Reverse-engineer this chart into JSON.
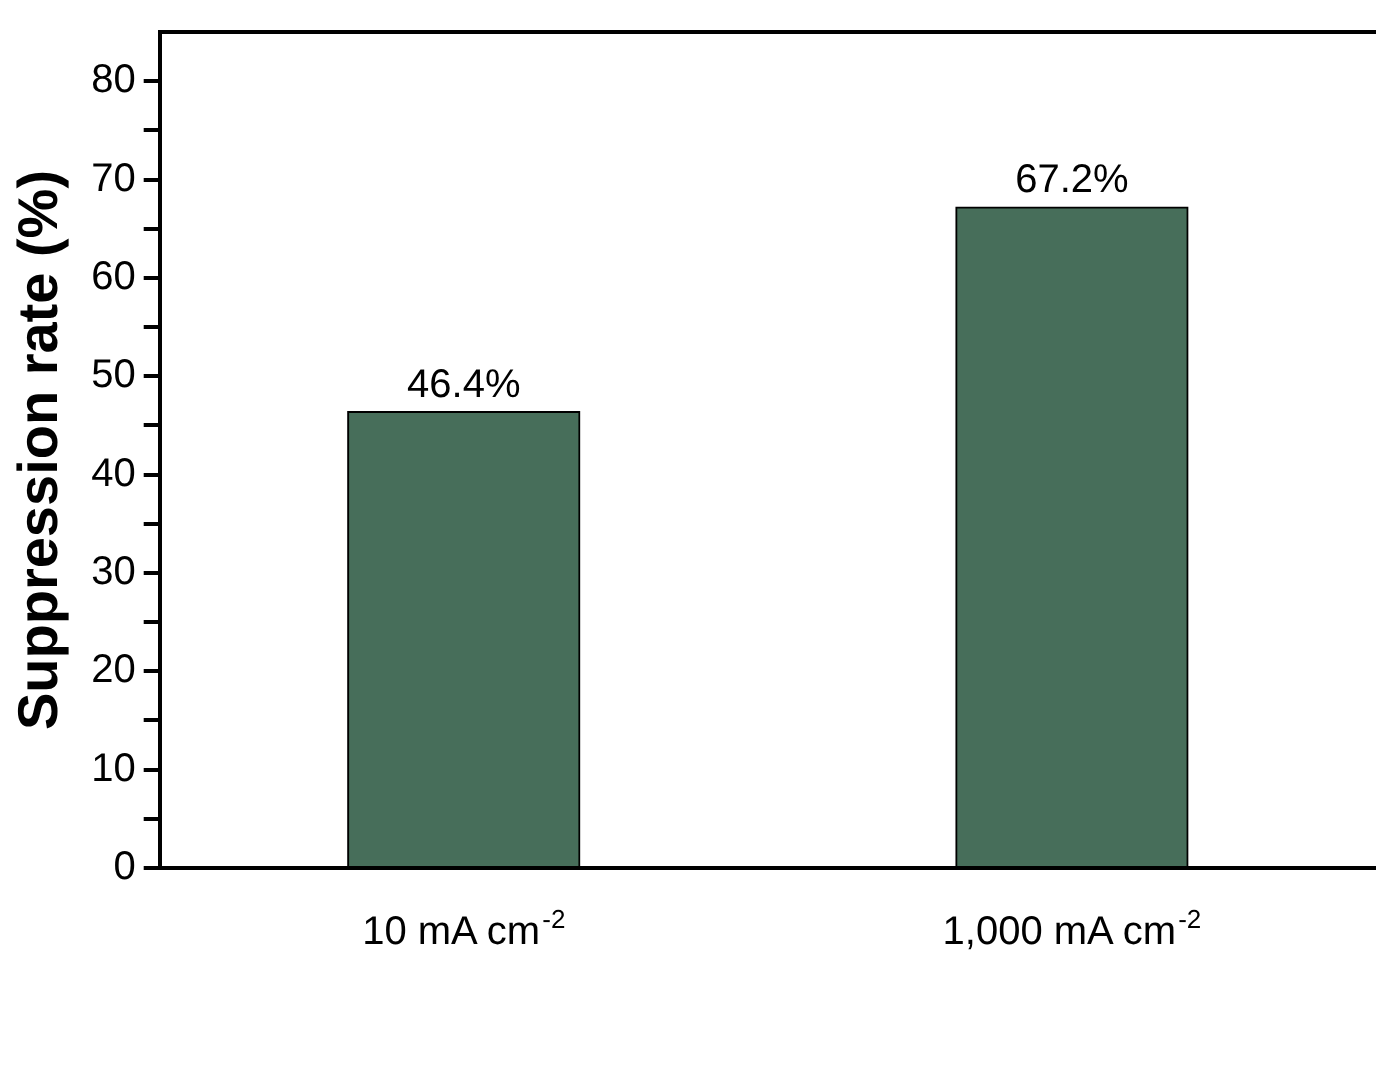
{
  "chart_data": {
    "type": "bar",
    "ylabel": "Suppression rate (%)",
    "categories": [
      "10 mA cm$^{-2}$",
      "1,000 mA cm$^{-2}$"
    ],
    "values": [
      46.4,
      67.2
    ],
    "color": "#476e5a",
    "value_labels": [
      "46.4%",
      "67.2%"
    ],
    "ylim": [
      0,
      85
    ],
    "yticks": [
      0,
      {
        "value": 5,
        "label": null
      },
      10,
      {
        "value": 15,
        "label": null
      },
      20,
      {
        "value": 25,
        "label": null
      },
      30,
      {
        "value": 35,
        "label": null
      },
      40,
      {
        "value": 45,
        "label": null
      },
      50,
      {
        "value": 55,
        "label": null
      },
      60,
      {
        "value": 65,
        "label": null
      },
      70,
      {
        "value": 75,
        "label": null
      },
      80
    ],
    "grid": false,
    "legend": false
  }
}
